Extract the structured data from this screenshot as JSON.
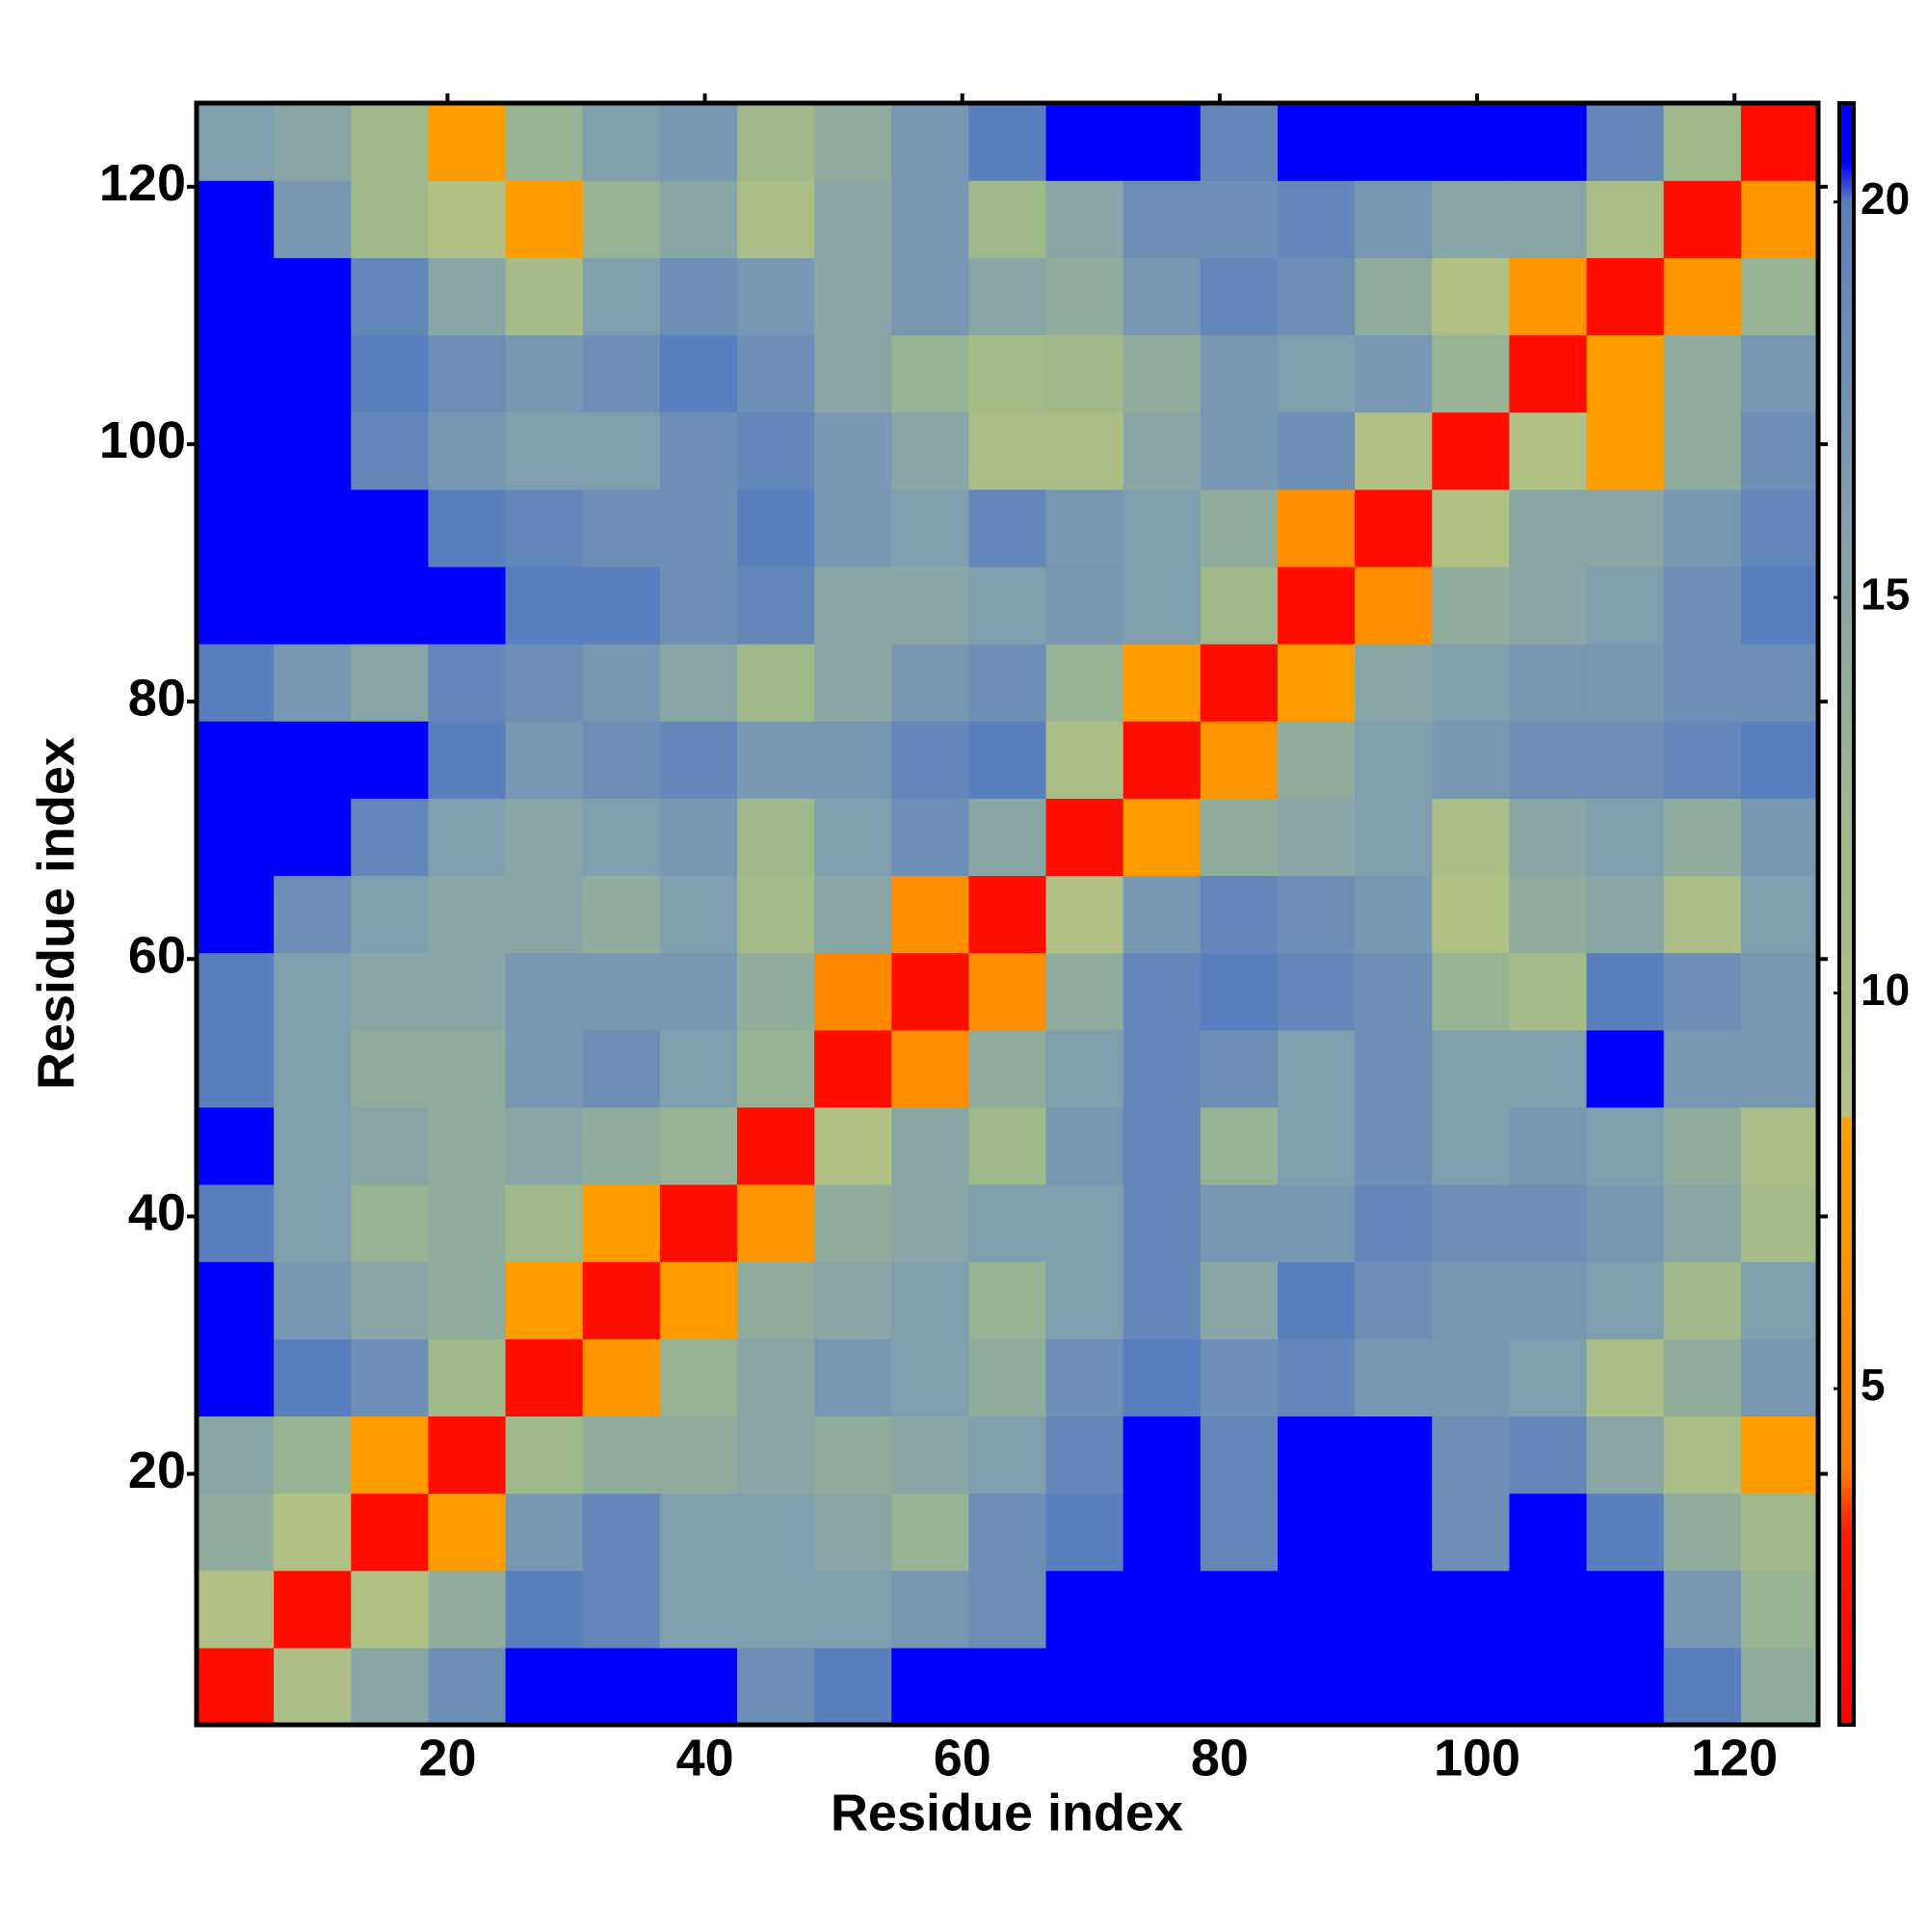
{
  "chart_data": {
    "type": "heatmap",
    "x_label": "Residue index",
    "y_label": "Residue index",
    "xbins": [
      0.5,
      6.5,
      12.5,
      18.5,
      24.5,
      30.5,
      36.5,
      42.5,
      48.5,
      54.5,
      60.5,
      66.5,
      72.5,
      78.5,
      84.5,
      90.5,
      96.5,
      102.5,
      108.5,
      114.5,
      120.5,
      126.5
    ],
    "ybins": [
      0.5,
      6.5,
      12.5,
      18.5,
      24.5,
      30.5,
      36.5,
      42.5,
      48.5,
      54.5,
      60.5,
      66.5,
      72.5,
      78.5,
      84.5,
      90.5,
      96.5,
      102.5,
      108.5,
      114.5,
      120.5,
      126.5
    ],
    "xlim": [
      0.5,
      126.5
    ],
    "ylim": [
      0.5,
      126.5
    ],
    "xticks": [
      20,
      40,
      60,
      80,
      100,
      120
    ],
    "yticks": [
      20,
      40,
      60,
      80,
      100,
      120
    ],
    "z": [
      [
        2,
        10,
        15,
        18,
        21,
        21,
        21,
        18,
        20,
        21,
        21,
        21,
        21,
        21,
        21,
        21,
        21,
        21,
        21,
        20,
        14
      ],
      [
        9,
        2,
        9,
        14,
        20,
        19,
        16,
        16,
        16,
        17,
        18,
        21,
        21,
        21,
        21,
        21,
        21,
        21,
        21,
        17,
        13
      ],
      [
        14,
        9,
        2,
        8,
        17,
        19,
        16,
        16,
        15,
        13,
        18,
        20,
        21,
        19,
        21,
        21,
        18,
        21,
        20,
        14,
        12
      ],
      [
        15,
        13,
        8,
        2,
        12,
        14,
        14,
        15,
        14,
        15,
        16,
        19,
        21,
        19,
        21,
        21,
        18,
        19,
        15,
        10,
        8
      ],
      [
        21,
        20,
        18,
        12,
        2,
        7,
        13,
        15,
        17,
        16,
        14,
        18,
        20,
        18,
        19,
        17,
        17,
        16,
        10,
        14,
        17
      ],
      [
        21,
        17,
        15,
        14,
        8,
        2,
        8,
        14,
        15,
        16,
        13,
        16,
        19,
        15,
        20,
        18,
        17,
        17,
        16,
        12,
        16
      ],
      [
        20,
        16,
        13,
        14,
        12,
        8,
        2,
        7,
        14,
        15,
        16,
        16,
        19,
        17,
        17,
        19,
        18,
        18,
        17,
        15,
        11
      ],
      [
        21,
        16,
        15,
        14,
        15,
        14,
        13,
        2,
        9,
        15,
        12,
        17,
        19,
        13,
        16,
        18,
        16,
        17,
        16,
        14,
        10
      ],
      [
        20,
        16,
        14,
        14,
        17,
        18,
        16,
        13,
        2,
        6,
        14,
        16,
        19,
        18,
        16,
        18,
        16,
        16,
        21,
        17,
        17
      ],
      [
        20,
        16,
        15,
        15,
        17,
        17,
        17,
        14,
        5,
        2,
        6,
        14,
        19,
        20,
        19,
        18,
        13,
        11,
        20,
        18,
        17
      ],
      [
        21,
        18,
        16,
        15,
        15,
        14,
        16,
        11,
        15,
        6,
        2,
        9,
        17,
        19,
        18,
        17,
        9,
        14,
        15,
        10,
        16
      ],
      [
        21,
        21,
        19,
        16,
        15,
        16,
        17,
        12,
        16,
        18,
        15,
        2,
        8,
        14,
        15,
        16,
        10,
        15,
        16,
        14,
        17
      ],
      [
        21,
        21,
        21,
        20,
        17,
        18,
        19,
        17,
        17,
        19,
        20,
        10,
        2,
        7,
        14,
        16,
        17,
        18,
        18,
        19,
        20
      ],
      [
        20,
        17,
        15,
        19,
        18,
        17,
        15,
        12,
        15,
        17,
        18,
        13,
        8,
        2,
        8,
        15,
        16,
        17,
        17,
        18,
        18
      ],
      [
        21,
        21,
        21,
        21,
        20,
        20,
        18,
        19,
        15,
        15,
        16,
        17,
        16,
        12,
        2,
        6,
        14,
        15,
        16,
        18,
        20
      ],
      [
        21,
        21,
        21,
        20,
        19,
        18,
        18,
        20,
        17,
        16,
        19,
        17,
        16,
        14,
        6,
        2,
        9,
        15,
        15,
        17,
        19
      ],
      [
        21,
        21,
        19,
        17,
        16,
        16,
        18,
        19,
        17,
        15,
        10,
        10,
        15,
        17,
        18,
        9,
        2,
        9,
        8,
        14,
        18
      ],
      [
        21,
        21,
        20,
        18,
        17,
        18,
        20,
        18,
        15,
        13,
        11,
        12,
        14,
        17,
        16,
        17,
        13,
        2,
        8,
        14,
        17
      ],
      [
        21,
        21,
        19,
        15,
        11,
        16,
        18,
        17,
        15,
        17,
        15,
        14,
        17,
        19,
        18,
        14,
        9,
        7,
        2,
        7,
        13
      ],
      [
        21,
        17,
        12,
        9,
        8,
        13,
        15,
        10,
        15,
        17,
        12,
        15,
        18,
        18,
        19,
        17,
        15,
        15,
        10,
        2,
        7
      ],
      [
        16,
        15,
        12,
        8,
        13,
        16,
        17,
        12,
        14,
        17,
        20,
        21,
        21,
        19,
        21,
        21,
        21,
        21,
        19,
        12,
        2
      ]
    ],
    "zlim": [
      0.75,
      21.25
    ],
    "zticks": [
      5,
      10,
      15,
      20
    ],
    "colorscale": [
      [
        0.75,
        "#ff0000"
      ],
      [
        3.2,
        "#ff1a00"
      ],
      [
        4,
        "#ff7f00"
      ],
      [
        8.4,
        "#ffa000"
      ],
      [
        8.45,
        "#b4c284"
      ],
      [
        12,
        "#a0b98a"
      ],
      [
        16,
        "#809fae"
      ],
      [
        20,
        "#5a7fbe"
      ],
      [
        20.5,
        "#0000ff"
      ],
      [
        21.25,
        "#0000ff"
      ]
    ]
  }
}
